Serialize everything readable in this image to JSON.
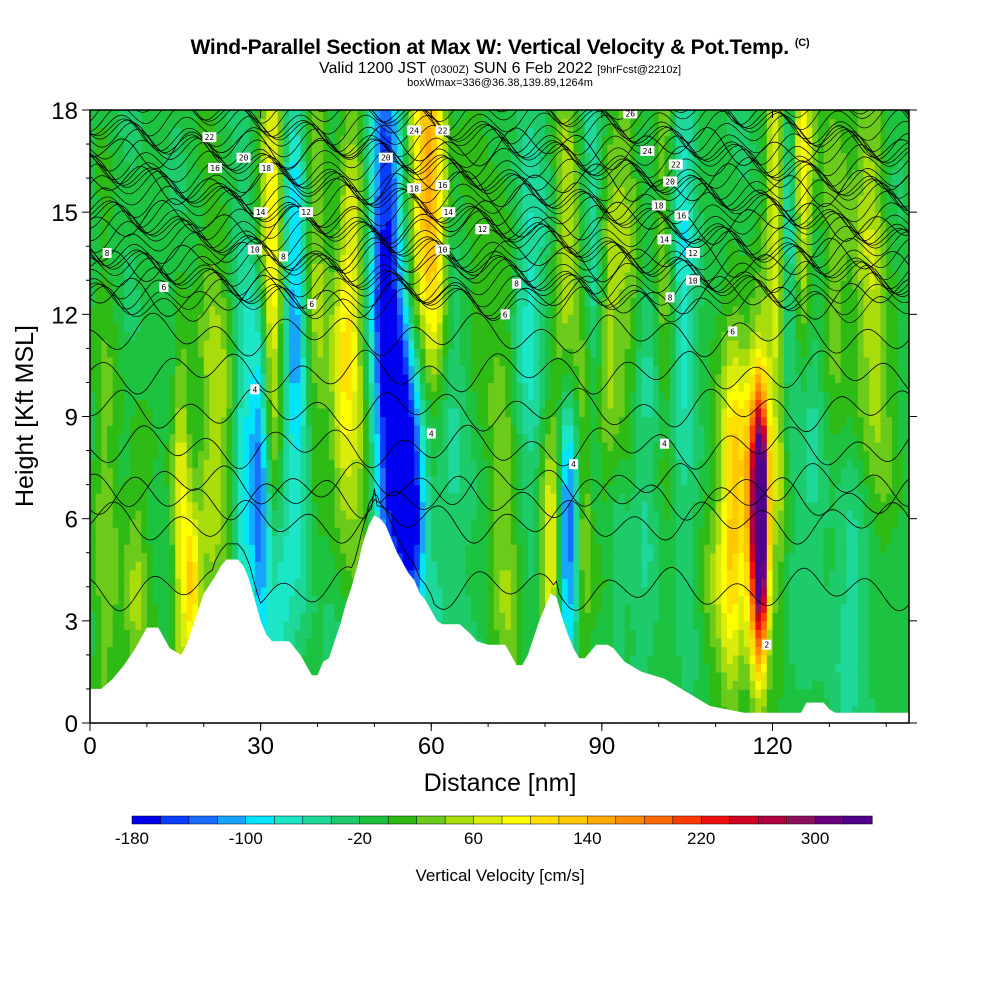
{
  "header": {
    "title": "Wind-Parallel Section at Max W: Vertical Velocity & Pot.Temp.",
    "copyright": "(C)",
    "subtitle_a": "Valid 1200 JST",
    "subtitle_b": "(0300Z)",
    "subtitle_c": "SUN 6 Feb 2022",
    "subtitle_d": "[9hrFcst@2210z]",
    "boxline": "boxWmax=336@36.38,139.89,1264m"
  },
  "chart_data": {
    "type": "heatmap",
    "xlabel": "Distance [nm]",
    "ylabel": "Height [Kft MSL]",
    "xlim": [
      0,
      144
    ],
    "ylim": [
      0,
      18
    ],
    "xticks": [
      0,
      30,
      60,
      90,
      120
    ],
    "yticks": [
      0,
      3,
      6,
      9,
      12,
      15,
      18
    ],
    "colorbar": {
      "title": "Vertical Velocity [cm/s]",
      "tick_labels": [
        "-180",
        "-100",
        "-20",
        "60",
        "140",
        "220",
        "300"
      ],
      "min": -180,
      "max": 340,
      "step": 20,
      "colors": [
        "#0000f0",
        "#0a3cff",
        "#1a6eff",
        "#17a6ff",
        "#00e5ff",
        "#1ce6c8",
        "#1dd89a",
        "#1dcb6a",
        "#1dc241",
        "#2fbb16",
        "#6ccb1a",
        "#a8dc0a",
        "#dcec0a",
        "#ffff00",
        "#ffe000",
        "#ffc800",
        "#ffaa00",
        "#ff8c00",
        "#ff6a00",
        "#ff3c00",
        "#f01010",
        "#d10020",
        "#b00040",
        "#901060",
        "#6a0080",
        "#50008c"
      ]
    },
    "terrain_kft": [
      [
        0,
        1.0
      ],
      [
        2,
        1.0
      ],
      [
        4,
        1.3
      ],
      [
        6,
        1.7
      ],
      [
        8,
        2.2
      ],
      [
        10,
        2.8
      ],
      [
        12,
        2.8
      ],
      [
        13,
        2.5
      ],
      [
        14,
        2.2
      ],
      [
        15,
        2.1
      ],
      [
        16,
        2.0
      ],
      [
        17,
        2.3
      ],
      [
        18,
        2.8
      ],
      [
        19,
        3.3
      ],
      [
        20,
        3.8
      ],
      [
        22,
        4.3
      ],
      [
        23,
        4.6
      ],
      [
        24,
        4.8
      ],
      [
        26,
        4.8
      ],
      [
        27,
        4.6
      ],
      [
        28,
        4.2
      ],
      [
        29,
        3.6
      ],
      [
        30,
        3.0
      ],
      [
        31,
        2.6
      ],
      [
        32,
        2.4
      ],
      [
        35,
        2.4
      ],
      [
        37,
        2.0
      ],
      [
        38,
        1.7
      ],
      [
        39,
        1.4
      ],
      [
        40,
        1.4
      ],
      [
        41,
        1.8
      ],
      [
        42,
        1.9
      ],
      [
        43,
        2.4
      ],
      [
        44,
        2.9
      ],
      [
        45,
        3.5
      ],
      [
        46,
        4.0
      ],
      [
        47,
        4.6
      ],
      [
        48,
        5.3
      ],
      [
        49,
        5.8
      ],
      [
        50,
        6.1
      ],
      [
        51,
        6.0
      ],
      [
        52,
        5.8
      ],
      [
        53,
        5.4
      ],
      [
        54,
        5.0
      ],
      [
        55,
        4.7
      ],
      [
        56,
        4.4
      ],
      [
        57,
        4.2
      ],
      [
        58,
        3.8
      ],
      [
        59,
        3.6
      ],
      [
        60,
        3.3
      ],
      [
        61,
        3.0
      ],
      [
        62,
        2.9
      ],
      [
        65,
        2.9
      ],
      [
        67,
        2.6
      ],
      [
        68,
        2.4
      ],
      [
        70,
        2.3
      ],
      [
        73,
        2.3
      ],
      [
        74,
        2.0
      ],
      [
        75,
        1.7
      ],
      [
        76,
        1.7
      ],
      [
        77,
        2.0
      ],
      [
        78,
        2.5
      ],
      [
        79,
        3.0
      ],
      [
        80,
        3.4
      ],
      [
        81,
        3.8
      ],
      [
        82,
        3.7
      ],
      [
        83,
        3.1
      ],
      [
        84,
        2.6
      ],
      [
        85,
        2.2
      ],
      [
        86,
        1.9
      ],
      [
        87,
        1.9
      ],
      [
        88,
        2.1
      ],
      [
        89,
        2.3
      ],
      [
        90,
        2.3
      ],
      [
        91,
        2.3
      ],
      [
        92,
        2.2
      ],
      [
        93,
        2.0
      ],
      [
        94,
        1.8
      ],
      [
        95,
        1.7
      ],
      [
        97,
        1.5
      ],
      [
        99,
        1.4
      ],
      [
        101,
        1.3
      ],
      [
        103,
        1.1
      ],
      [
        105,
        0.9
      ],
      [
        107,
        0.7
      ],
      [
        109,
        0.5
      ],
      [
        112,
        0.4
      ],
      [
        115,
        0.3
      ],
      [
        118,
        0.3
      ],
      [
        121,
        0.3
      ],
      [
        125,
        0.3
      ],
      [
        126,
        0.6
      ],
      [
        129,
        0.6
      ],
      [
        130,
        0.4
      ],
      [
        131,
        0.3
      ],
      [
        144,
        0.3
      ]
    ],
    "w_features": [
      {
        "x": 3,
        "z": 5,
        "w": 40,
        "sx": 2,
        "sz": 6
      },
      {
        "x": 8,
        "z": 4,
        "w": 60,
        "sx": 1.5,
        "sz": 3
      },
      {
        "x": 16,
        "z": 6,
        "w": 100,
        "sx": 1.2,
        "sz": 4
      },
      {
        "x": 18,
        "z": 4,
        "w": 120,
        "sx": 1,
        "sz": 1.5
      },
      {
        "x": 21,
        "z": 8,
        "w": 40,
        "sx": 1.5,
        "sz": 5
      },
      {
        "x": 24,
        "z": 9,
        "w": 60,
        "sx": 2,
        "sz": 4
      },
      {
        "x": 27,
        "z": 8,
        "w": -80,
        "sx": 1.5,
        "sz": 5
      },
      {
        "x": 30,
        "z": 7,
        "w": -130,
        "sx": 1.2,
        "sz": 4
      },
      {
        "x": 32,
        "z": 14,
        "w": 130,
        "sx": 1.5,
        "sz": 5
      },
      {
        "x": 33,
        "z": 3,
        "w": -50,
        "sx": 1.5,
        "sz": 2
      },
      {
        "x": 36,
        "z": 13,
        "w": -100,
        "sx": 1.5,
        "sz": 4
      },
      {
        "x": 37,
        "z": 6,
        "w": -40,
        "sx": 2,
        "sz": 3
      },
      {
        "x": 40,
        "z": 13,
        "w": 60,
        "sx": 1.5,
        "sz": 5
      },
      {
        "x": 44,
        "z": 10,
        "w": 80,
        "sx": 1.5,
        "sz": 3
      },
      {
        "x": 46,
        "z": 13,
        "w": 80,
        "sx": 1.5,
        "sz": 4
      },
      {
        "x": 48,
        "z": 7,
        "w": 40,
        "sx": 2,
        "sz": 2
      },
      {
        "x": 52,
        "z": 13,
        "w": -150,
        "sx": 2,
        "sz": 6
      },
      {
        "x": 55,
        "z": 8,
        "w": -150,
        "sx": 2,
        "sz": 3
      },
      {
        "x": 57,
        "z": 6,
        "w": -110,
        "sx": 1.5,
        "sz": 2.5
      },
      {
        "x": 59,
        "z": 16,
        "w": 140,
        "sx": 2,
        "sz": 4
      },
      {
        "x": 61,
        "z": 14,
        "w": 80,
        "sx": 1.5,
        "sz": 4
      },
      {
        "x": 64,
        "z": 9,
        "w": -40,
        "sx": 3,
        "sz": 5
      },
      {
        "x": 68,
        "z": 14,
        "w": 40,
        "sx": 2,
        "sz": 5
      },
      {
        "x": 72,
        "z": 8,
        "w": 40,
        "sx": 2,
        "sz": 5
      },
      {
        "x": 74,
        "z": 4,
        "w": 30,
        "sx": 2,
        "sz": 2
      },
      {
        "x": 77,
        "z": 12,
        "w": -50,
        "sx": 2,
        "sz": 4
      },
      {
        "x": 81,
        "z": 5,
        "w": 100,
        "sx": 1.5,
        "sz": 3
      },
      {
        "x": 84,
        "z": 6,
        "w": -170,
        "sx": 1.2,
        "sz": 3
      },
      {
        "x": 84,
        "z": 13,
        "w": 70,
        "sx": 1.5,
        "sz": 5
      },
      {
        "x": 87,
        "z": 8,
        "w": 70,
        "sx": 1.2,
        "sz": 6
      },
      {
        "x": 88,
        "z": 14,
        "w": -60,
        "sx": 1.5,
        "sz": 5
      },
      {
        "x": 91,
        "z": 9,
        "w": 60,
        "sx": 1.5,
        "sz": 6
      },
      {
        "x": 92,
        "z": 5,
        "w": -60,
        "sx": 1.5,
        "sz": 3
      },
      {
        "x": 95,
        "z": 14,
        "w": 60,
        "sx": 2,
        "sz": 5
      },
      {
        "x": 98,
        "z": 10,
        "w": -40,
        "sx": 2,
        "sz": 5
      },
      {
        "x": 101,
        "z": 14,
        "w": 50,
        "sx": 1.5,
        "sz": 5
      },
      {
        "x": 104,
        "z": 14,
        "w": -60,
        "sx": 1.5,
        "sz": 5
      },
      {
        "x": 110,
        "z": 4,
        "w": 40,
        "sx": 2,
        "sz": 2
      },
      {
        "x": 113,
        "z": 5,
        "w": 90,
        "sx": 1.5,
        "sz": 4
      },
      {
        "x": 117,
        "z": 6,
        "w": 200,
        "sx": 1.2,
        "sz": 3
      },
      {
        "x": 118,
        "z": 6,
        "w": 320,
        "sx": 0.9,
        "sz": 2.5
      },
      {
        "x": 114,
        "z": 8,
        "w": 80,
        "sx": 2,
        "sz": 3
      },
      {
        "x": 121,
        "z": 8,
        "w": 60,
        "sx": 1.5,
        "sz": 4
      },
      {
        "x": 121,
        "z": 16,
        "w": 90,
        "sx": 1.5,
        "sz": 4
      },
      {
        "x": 123,
        "z": 15,
        "w": -120,
        "sx": 1.2,
        "sz": 4
      },
      {
        "x": 125,
        "z": 16,
        "w": 140,
        "sx": 1.5,
        "sz": 4
      },
      {
        "x": 127,
        "z": 10,
        "w": -50,
        "sx": 2,
        "sz": 5
      },
      {
        "x": 131,
        "z": 14,
        "w": 60,
        "sx": 2,
        "sz": 5
      },
      {
        "x": 137,
        "z": 14,
        "w": 60,
        "sx": 2,
        "sz": 5
      },
      {
        "x": 135,
        "z": 4,
        "w": -40,
        "sx": 3,
        "sz": 3
      },
      {
        "x": 140,
        "z": 8,
        "w": 40,
        "sx": 2,
        "sz": 4
      }
    ],
    "theta_contours": {
      "values": [
        2,
        4,
        6,
        8,
        10,
        12,
        14,
        16,
        18,
        20,
        22,
        24,
        26
      ],
      "contour_labels": [
        {
          "x": 3,
          "z": 13.8,
          "text": "8"
        },
        {
          "x": 13,
          "z": 12.8,
          "text": "6"
        },
        {
          "x": 21,
          "z": 17.2,
          "text": "22"
        },
        {
          "x": 27,
          "z": 16.6,
          "text": "20"
        },
        {
          "x": 22,
          "z": 16.3,
          "text": "16"
        },
        {
          "x": 31,
          "z": 16.3,
          "text": "18"
        },
        {
          "x": 30,
          "z": 15.0,
          "text": "14"
        },
        {
          "x": 38,
          "z": 15.0,
          "text": "12"
        },
        {
          "x": 29,
          "z": 13.9,
          "text": "10"
        },
        {
          "x": 34,
          "z": 13.7,
          "text": "8"
        },
        {
          "x": 39,
          "z": 12.3,
          "text": "6"
        },
        {
          "x": 29,
          "z": 9.8,
          "text": "4"
        },
        {
          "x": 52,
          "z": 16.6,
          "text": "20"
        },
        {
          "x": 57,
          "z": 17.4,
          "text": "24"
        },
        {
          "x": 62,
          "z": 17.4,
          "text": "22"
        },
        {
          "x": 57,
          "z": 15.7,
          "text": "18"
        },
        {
          "x": 62,
          "z": 15.8,
          "text": "16"
        },
        {
          "x": 63,
          "z": 15.0,
          "text": "14"
        },
        {
          "x": 69,
          "z": 14.5,
          "text": "12"
        },
        {
          "x": 62,
          "z": 13.9,
          "text": "10"
        },
        {
          "x": 75,
          "z": 12.9,
          "text": "8"
        },
        {
          "x": 73,
          "z": 12.0,
          "text": "6"
        },
        {
          "x": 60,
          "z": 8.5,
          "text": "4"
        },
        {
          "x": 95,
          "z": 17.9,
          "text": "26"
        },
        {
          "x": 98,
          "z": 16.8,
          "text": "24"
        },
        {
          "x": 103,
          "z": 16.4,
          "text": "22"
        },
        {
          "x": 102,
          "z": 15.9,
          "text": "20"
        },
        {
          "x": 100,
          "z": 15.2,
          "text": "18"
        },
        {
          "x": 104,
          "z": 14.9,
          "text": "16"
        },
        {
          "x": 101,
          "z": 14.2,
          "text": "14"
        },
        {
          "x": 106,
          "z": 13.8,
          "text": "12"
        },
        {
          "x": 106,
          "z": 13.0,
          "text": "10"
        },
        {
          "x": 102,
          "z": 12.5,
          "text": "8"
        },
        {
          "x": 113,
          "z": 11.5,
          "text": "6"
        },
        {
          "x": 85,
          "z": 7.6,
          "text": "4"
        },
        {
          "x": 101,
          "z": 8.2,
          "text": "4"
        },
        {
          "x": 119,
          "z": 2.3,
          "text": "2"
        }
      ]
    }
  }
}
